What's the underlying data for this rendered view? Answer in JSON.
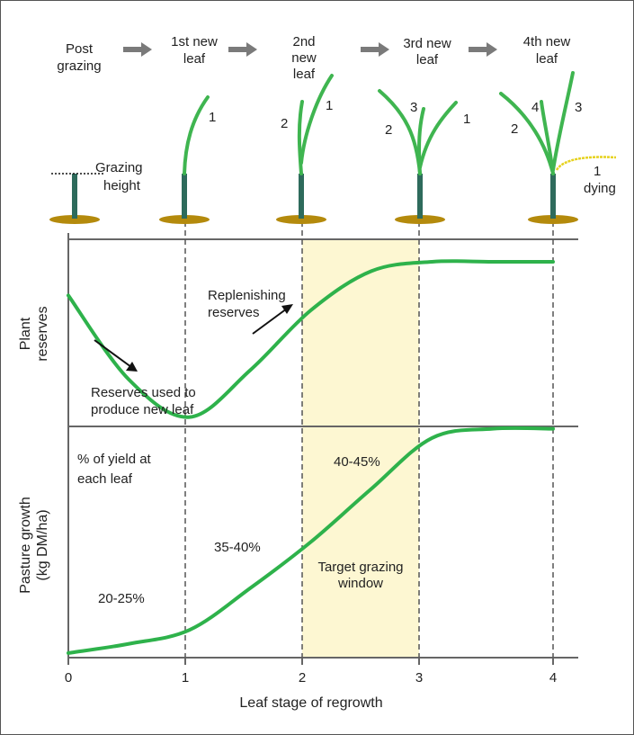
{
  "stages": [
    {
      "lines": [
        "Post",
        "grazing"
      ]
    },
    {
      "lines": [
        "1st new",
        "leaf"
      ]
    },
    {
      "lines": [
        "2nd",
        "new",
        "leaf"
      ]
    },
    {
      "lines": [
        "3rd new",
        "leaf"
      ]
    },
    {
      "lines": [
        "4th new",
        "leaf"
      ]
    }
  ],
  "leaf_numbers": [
    "1",
    "2",
    "1",
    "2",
    "3",
    "1",
    "2",
    "4",
    "3",
    "1"
  ],
  "grazing_height": [
    "Grazing",
    "height"
  ],
  "dying_label": "dying",
  "reserves": {
    "ylabel": [
      "Plant",
      "reserves"
    ],
    "annotation_used": [
      "Reserves used to",
      "produce new leaf"
    ],
    "annotation_replenish": [
      "Replenishing",
      "reserves"
    ]
  },
  "growth": {
    "ylabel": [
      "Pasture growth",
      "(kg DM/ha)"
    ],
    "note": [
      "% of yield at",
      "each leaf"
    ],
    "pct_1": "20-25%",
    "pct_2": "35-40%",
    "pct_3": "40-45%",
    "window": [
      "Target grazing",
      "window"
    ]
  },
  "x_axis": {
    "ticks": [
      "0",
      "1",
      "2",
      "3",
      "4"
    ],
    "label": "Leaf stage of regrowth"
  },
  "colors": {
    "curve": "#2eb24b",
    "leaf": "#3fb550",
    "stem": "#2e6b5c",
    "soil": "#b48a0c",
    "dying": "#e6d21e",
    "window": "#fdf7d2",
    "arrow": "#7a7a7a",
    "grid": "#666666"
  },
  "chart_data": {
    "type": "line",
    "x": [
      0,
      0.5,
      1,
      1.5,
      2,
      2.5,
      3,
      3.5,
      4
    ],
    "series": [
      {
        "values": [
          0.7,
          0.25,
          0.05,
          0.3,
          0.62,
          0.83,
          0.88,
          0.88,
          0.88
        ]
      },
      {
        "values": [
          0.02,
          0.06,
          0.12,
          0.3,
          0.5,
          0.73,
          0.95,
          0.99,
          0.99
        ]
      }
    ],
    "xlabel": "Leaf stage of regrowth",
    "xlim": [
      0,
      4
    ],
    "highlight_range": [
      2,
      3
    ],
    "grid": false
  }
}
